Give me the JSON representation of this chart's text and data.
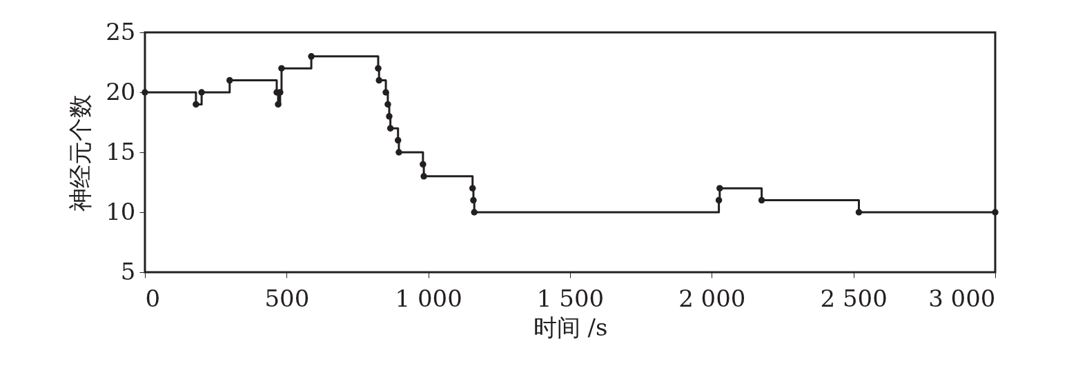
{
  "chart_data": {
    "type": "step",
    "xlabel": "时间 /s",
    "ylabel": "神经元个数",
    "color": "#231f20",
    "marker": "circle",
    "line_style": "solid",
    "grid": false,
    "x": [
      0,
      180,
      200,
      299,
      465,
      470,
      477,
      482,
      587,
      823,
      826,
      850,
      857,
      862,
      866,
      893,
      896,
      981,
      984,
      1156,
      1159,
      1162,
      2025,
      2028,
      2176,
      2519,
      3000
    ],
    "values": [
      20,
      19,
      20,
      21,
      20,
      19,
      20,
      22,
      23,
      22,
      21,
      20,
      19,
      18,
      17,
      16,
      15,
      14,
      13,
      12,
      11,
      10,
      11,
      12,
      11,
      10,
      10
    ],
    "xlim": [
      0,
      3000
    ],
    "xticks": [
      0,
      500,
      {
        "value": 1000,
        "label": "1 000"
      },
      {
        "value": 1500,
        "label": "1 500"
      },
      {
        "value": 2000,
        "label": "2 000"
      },
      {
        "value": 2500,
        "label": "2 500"
      },
      {
        "value": 3000,
        "label": "3 000"
      }
    ],
    "ylim": [
      5,
      25
    ],
    "yticks": [
      5,
      10,
      15,
      20,
      25
    ]
  }
}
